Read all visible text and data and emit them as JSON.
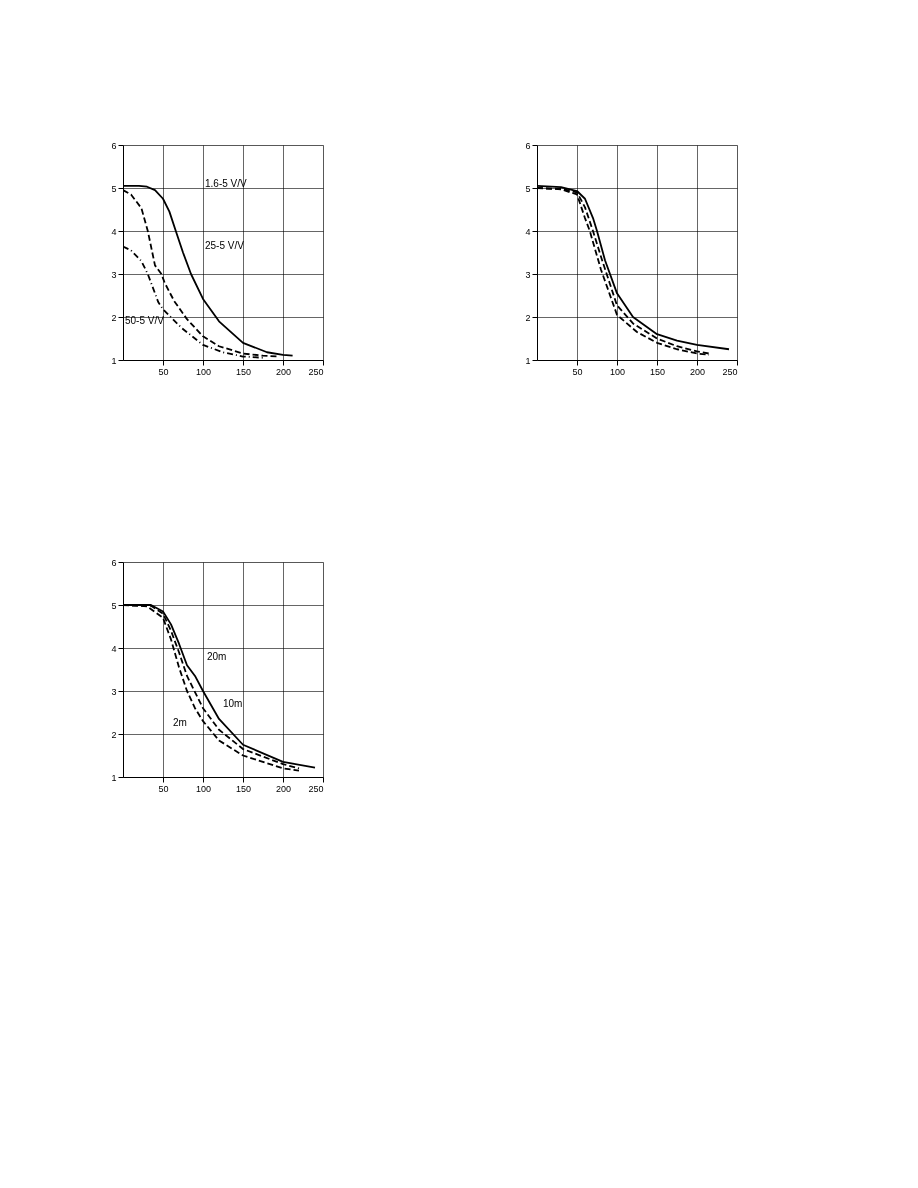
{
  "chart_data": [
    {
      "type": "line",
      "xlim": [
        0,
        250
      ],
      "ylim": [
        1,
        6
      ],
      "xticks": [
        50,
        100,
        150,
        200,
        250
      ],
      "yticks": [
        1,
        2,
        3,
        4,
        5,
        6
      ],
      "grid": true,
      "marker": "none",
      "series": [
        {
          "color": "#000000",
          "line_style": "solid",
          "x": [
            0,
            20,
            30,
            40,
            50,
            58,
            66,
            75,
            85,
            100,
            120,
            150,
            180,
            200,
            212
          ],
          "values": [
            5.05,
            5.05,
            5.03,
            4.95,
            4.75,
            4.45,
            4.0,
            3.5,
            3.0,
            2.42,
            1.9,
            1.4,
            1.18,
            1.12,
            1.1
          ]
        },
        {
          "color": "#000000",
          "line_style": "dashed",
          "x": [
            0,
            10,
            23,
            31,
            40,
            48,
            52,
            64,
            80,
            100,
            120,
            150,
            175,
            194
          ],
          "values": [
            4.95,
            4.85,
            4.53,
            4.0,
            3.2,
            3.0,
            2.8,
            2.37,
            1.95,
            1.55,
            1.32,
            1.15,
            1.1,
            1.08
          ]
        },
        {
          "color": "#000000",
          "line_style": "dotted",
          "x": [
            0,
            10,
            23,
            31,
            44,
            50,
            73,
            100,
            125,
            150,
            177
          ],
          "values": [
            3.64,
            3.55,
            3.3,
            3.0,
            2.35,
            2.18,
            1.75,
            1.35,
            1.18,
            1.08,
            1.05
          ]
        }
      ],
      "annotations": [
        "1.6-5 V/V",
        "25-5 V/V",
        "50-5 V/V"
      ]
    },
    {
      "type": "line",
      "xlim": [
        0,
        250
      ],
      "ylim": [
        1,
        6
      ],
      "xticks": [
        50,
        100,
        150,
        200,
        250
      ],
      "yticks": [
        1,
        2,
        3,
        4,
        5,
        6
      ],
      "grid": true,
      "marker": "none",
      "series": [
        {
          "color": "#000000",
          "line_style": "solid",
          "x": [
            0,
            30,
            50,
            60,
            70,
            75,
            85,
            100,
            120,
            150,
            175,
            200,
            240
          ],
          "values": [
            5.05,
            5.02,
            4.93,
            4.75,
            4.3,
            4.0,
            3.32,
            2.55,
            2.0,
            1.6,
            1.45,
            1.35,
            1.25
          ]
        },
        {
          "color": "#000000",
          "line_style": "dashed",
          "x": [
            0,
            30,
            50,
            60,
            70,
            80,
            100,
            120,
            150,
            175,
            200,
            215
          ],
          "values": [
            5.0,
            4.98,
            4.9,
            4.55,
            4.0,
            3.4,
            2.27,
            1.85,
            1.5,
            1.32,
            1.2,
            1.15
          ]
        },
        {
          "color": "#000000",
          "line_style": "dashed",
          "x": [
            0,
            30,
            50,
            60,
            66,
            80,
            100,
            125,
            150,
            175,
            200,
            215
          ],
          "values": [
            5.0,
            4.97,
            4.85,
            4.3,
            4.0,
            3.1,
            2.05,
            1.65,
            1.4,
            1.25,
            1.15,
            1.12
          ]
        }
      ]
    },
    {
      "type": "line",
      "xlim": [
        0,
        250
      ],
      "ylim": [
        1,
        6
      ],
      "xticks": [
        50,
        100,
        150,
        200,
        250
      ],
      "yticks": [
        1,
        2,
        3,
        4,
        5,
        6
      ],
      "grid": true,
      "marker": "none",
      "series": [
        {
          "color": "#000000",
          "line_style": "solid",
          "x": [
            0,
            35,
            50,
            60,
            70,
            80,
            90,
            100,
            120,
            150,
            200,
            240
          ],
          "values": [
            5.0,
            5.0,
            4.85,
            4.55,
            4.1,
            3.6,
            3.35,
            3.0,
            2.35,
            1.75,
            1.35,
            1.22
          ]
        },
        {
          "color": "#000000",
          "line_style": "dashed",
          "x": [
            0,
            35,
            50,
            60,
            70,
            80,
            100,
            120,
            150,
            200,
            220
          ],
          "values": [
            5.0,
            4.98,
            4.8,
            4.4,
            3.9,
            3.35,
            2.6,
            2.1,
            1.65,
            1.3,
            1.2
          ]
        },
        {
          "color": "#000000",
          "line_style": "dashed",
          "x": [
            0,
            30,
            50,
            60,
            70,
            80,
            90,
            100,
            120,
            150,
            200,
            220
          ],
          "values": [
            5.0,
            4.97,
            4.7,
            4.2,
            3.55,
            3.0,
            2.6,
            2.3,
            1.85,
            1.5,
            1.2,
            1.15
          ]
        }
      ],
      "annotations": [
        "20m",
        "10m",
        "2m"
      ]
    }
  ]
}
